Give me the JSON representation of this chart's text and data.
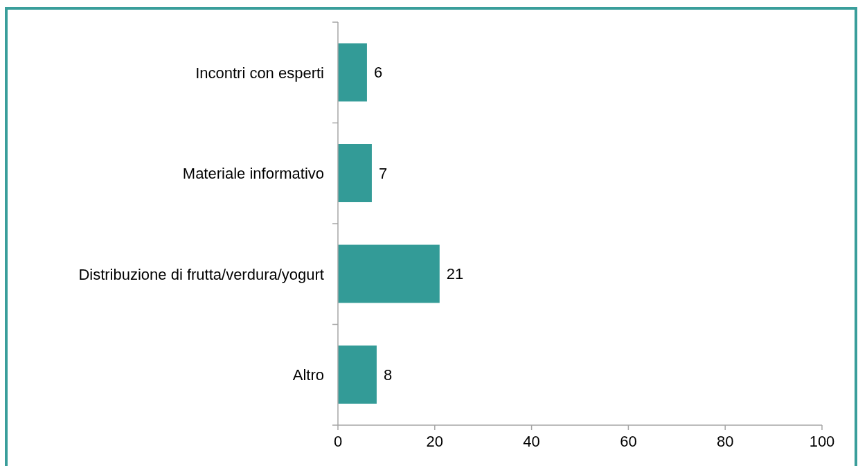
{
  "chart_data": {
    "type": "bar",
    "orientation": "horizontal",
    "categories": [
      "Incontri con esperti",
      "Materiale informativo",
      "Distribuzione di frutta/verdura/yogurt",
      "Altro"
    ],
    "values": [
      6,
      7,
      21,
      8
    ],
    "color": "#339b97",
    "xlim": [
      0,
      100
    ],
    "xticks": [
      0,
      20,
      40,
      60,
      80,
      100
    ],
    "data_labels": true
  }
}
